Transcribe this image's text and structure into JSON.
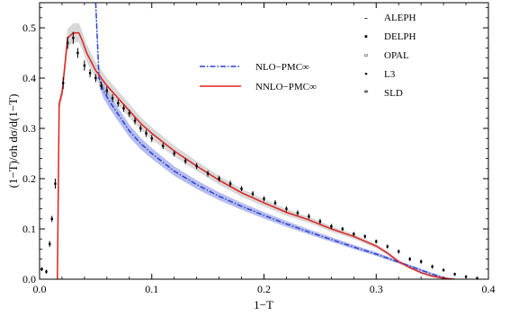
{
  "chart_data": {
    "type": "line",
    "xlabel": "1−T",
    "ylabel": "(1−T)/σh dσ/d(1−T)",
    "xlim": [
      0.0,
      0.4
    ],
    "ylim": [
      0.0,
      0.55
    ],
    "x_ticks": [
      "0.0",
      "0.1",
      "0.2",
      "0.3",
      "0.4"
    ],
    "y_ticks": [
      "0.0",
      "0.1",
      "0.2",
      "0.3",
      "0.4",
      "0.5"
    ],
    "grid": false,
    "series": [
      {
        "name": "NLO−PMC∞",
        "style": "dash-dot",
        "color": "#2a3fd6",
        "band_color": "#7a86e0",
        "x": [
          0.05,
          0.053,
          0.057,
          0.062,
          0.07,
          0.08,
          0.09,
          0.1,
          0.12,
          0.14,
          0.16,
          0.18,
          0.2,
          0.22,
          0.24,
          0.26,
          0.28,
          0.3,
          0.32,
          0.34,
          0.35,
          0.36,
          0.365
        ],
        "y": [
          0.55,
          0.4,
          0.375,
          0.355,
          0.328,
          0.295,
          0.27,
          0.25,
          0.215,
          0.188,
          0.165,
          0.145,
          0.127,
          0.11,
          0.094,
          0.079,
          0.064,
          0.05,
          0.034,
          0.018,
          0.01,
          0.003,
          0.0
        ]
      },
      {
        "name": "NNLO−PMC∞",
        "style": "solid",
        "color": "#e02020",
        "band_color": "#b8b8b8",
        "x": [
          0.0159,
          0.0175,
          0.02,
          0.025,
          0.03,
          0.035,
          0.038,
          0.042,
          0.05,
          0.06,
          0.07,
          0.08,
          0.09,
          0.1,
          0.12,
          0.14,
          0.16,
          0.18,
          0.2,
          0.22,
          0.24,
          0.26,
          0.28,
          0.3,
          0.31,
          0.32,
          0.33,
          0.34,
          0.35,
          0.36,
          0.37
        ],
        "y": [
          0.0,
          0.35,
          0.37,
          0.48,
          0.49,
          0.49,
          0.475,
          0.45,
          0.415,
          0.385,
          0.36,
          0.335,
          0.31,
          0.29,
          0.255,
          0.225,
          0.197,
          0.172,
          0.152,
          0.133,
          0.118,
          0.1,
          0.085,
          0.066,
          0.052,
          0.035,
          0.023,
          0.013,
          0.006,
          0.002,
          0.0
        ]
      }
    ],
    "data": {
      "style": "points with error bars",
      "color": "#000000",
      "x": [
        0.002,
        0.006,
        0.009,
        0.011,
        0.014,
        0.021,
        0.025,
        0.03,
        0.034,
        0.04,
        0.045,
        0.05,
        0.055,
        0.06,
        0.065,
        0.07,
        0.075,
        0.08,
        0.085,
        0.09,
        0.095,
        0.1,
        0.11,
        0.12,
        0.13,
        0.14,
        0.15,
        0.16,
        0.17,
        0.18,
        0.19,
        0.2,
        0.21,
        0.22,
        0.23,
        0.24,
        0.25,
        0.26,
        0.27,
        0.28,
        0.29,
        0.3,
        0.31,
        0.32,
        0.33,
        0.34,
        0.35,
        0.36,
        0.37,
        0.38,
        0.39
      ],
      "y": [
        0.02,
        0.015,
        0.07,
        0.12,
        0.19,
        0.39,
        0.47,
        0.48,
        0.45,
        0.425,
        0.41,
        0.4,
        0.385,
        0.375,
        0.36,
        0.35,
        0.34,
        0.33,
        0.315,
        0.3,
        0.29,
        0.28,
        0.265,
        0.25,
        0.235,
        0.225,
        0.21,
        0.2,
        0.19,
        0.18,
        0.17,
        0.16,
        0.152,
        0.14,
        0.132,
        0.125,
        0.115,
        0.105,
        0.1,
        0.09,
        0.085,
        0.075,
        0.065,
        0.055,
        0.04,
        0.035,
        0.025,
        0.018,
        0.01,
        0.005,
        0.002
      ],
      "err": [
        0.004,
        0.004,
        0.006,
        0.006,
        0.01,
        0.012,
        0.012,
        0.012,
        0.01,
        0.01,
        0.008,
        0.008,
        0.008,
        0.008,
        0.008,
        0.007,
        0.007,
        0.007,
        0.007,
        0.007,
        0.007,
        0.007,
        0.006,
        0.006,
        0.006,
        0.006,
        0.006,
        0.006,
        0.006,
        0.005,
        0.005,
        0.005,
        0.005,
        0.005,
        0.005,
        0.005,
        0.005,
        0.005,
        0.004,
        0.004,
        0.004,
        0.004,
        0.004,
        0.004,
        0.004,
        0.004,
        0.004,
        0.003,
        0.003,
        0.003,
        0.003
      ]
    },
    "legend_series": [
      {
        "label": "NLO−PMC∞",
        "style": "dash-dot",
        "color": "#2a3fd6"
      },
      {
        "label": "NNLO−PMC∞",
        "style": "solid",
        "color": "#e02020"
      }
    ],
    "legend_series_position": "center-top",
    "legend_data": [
      {
        "symbol": "-",
        "label": "ALEPH"
      },
      {
        "symbol": "▪",
        "label": "DELPH"
      },
      {
        "symbol": "▫",
        "label": "OPAL"
      },
      {
        "symbol": "•",
        "label": "L3"
      },
      {
        "symbol": "*",
        "label": "SLD"
      }
    ],
    "legend_data_position": "top-right"
  }
}
